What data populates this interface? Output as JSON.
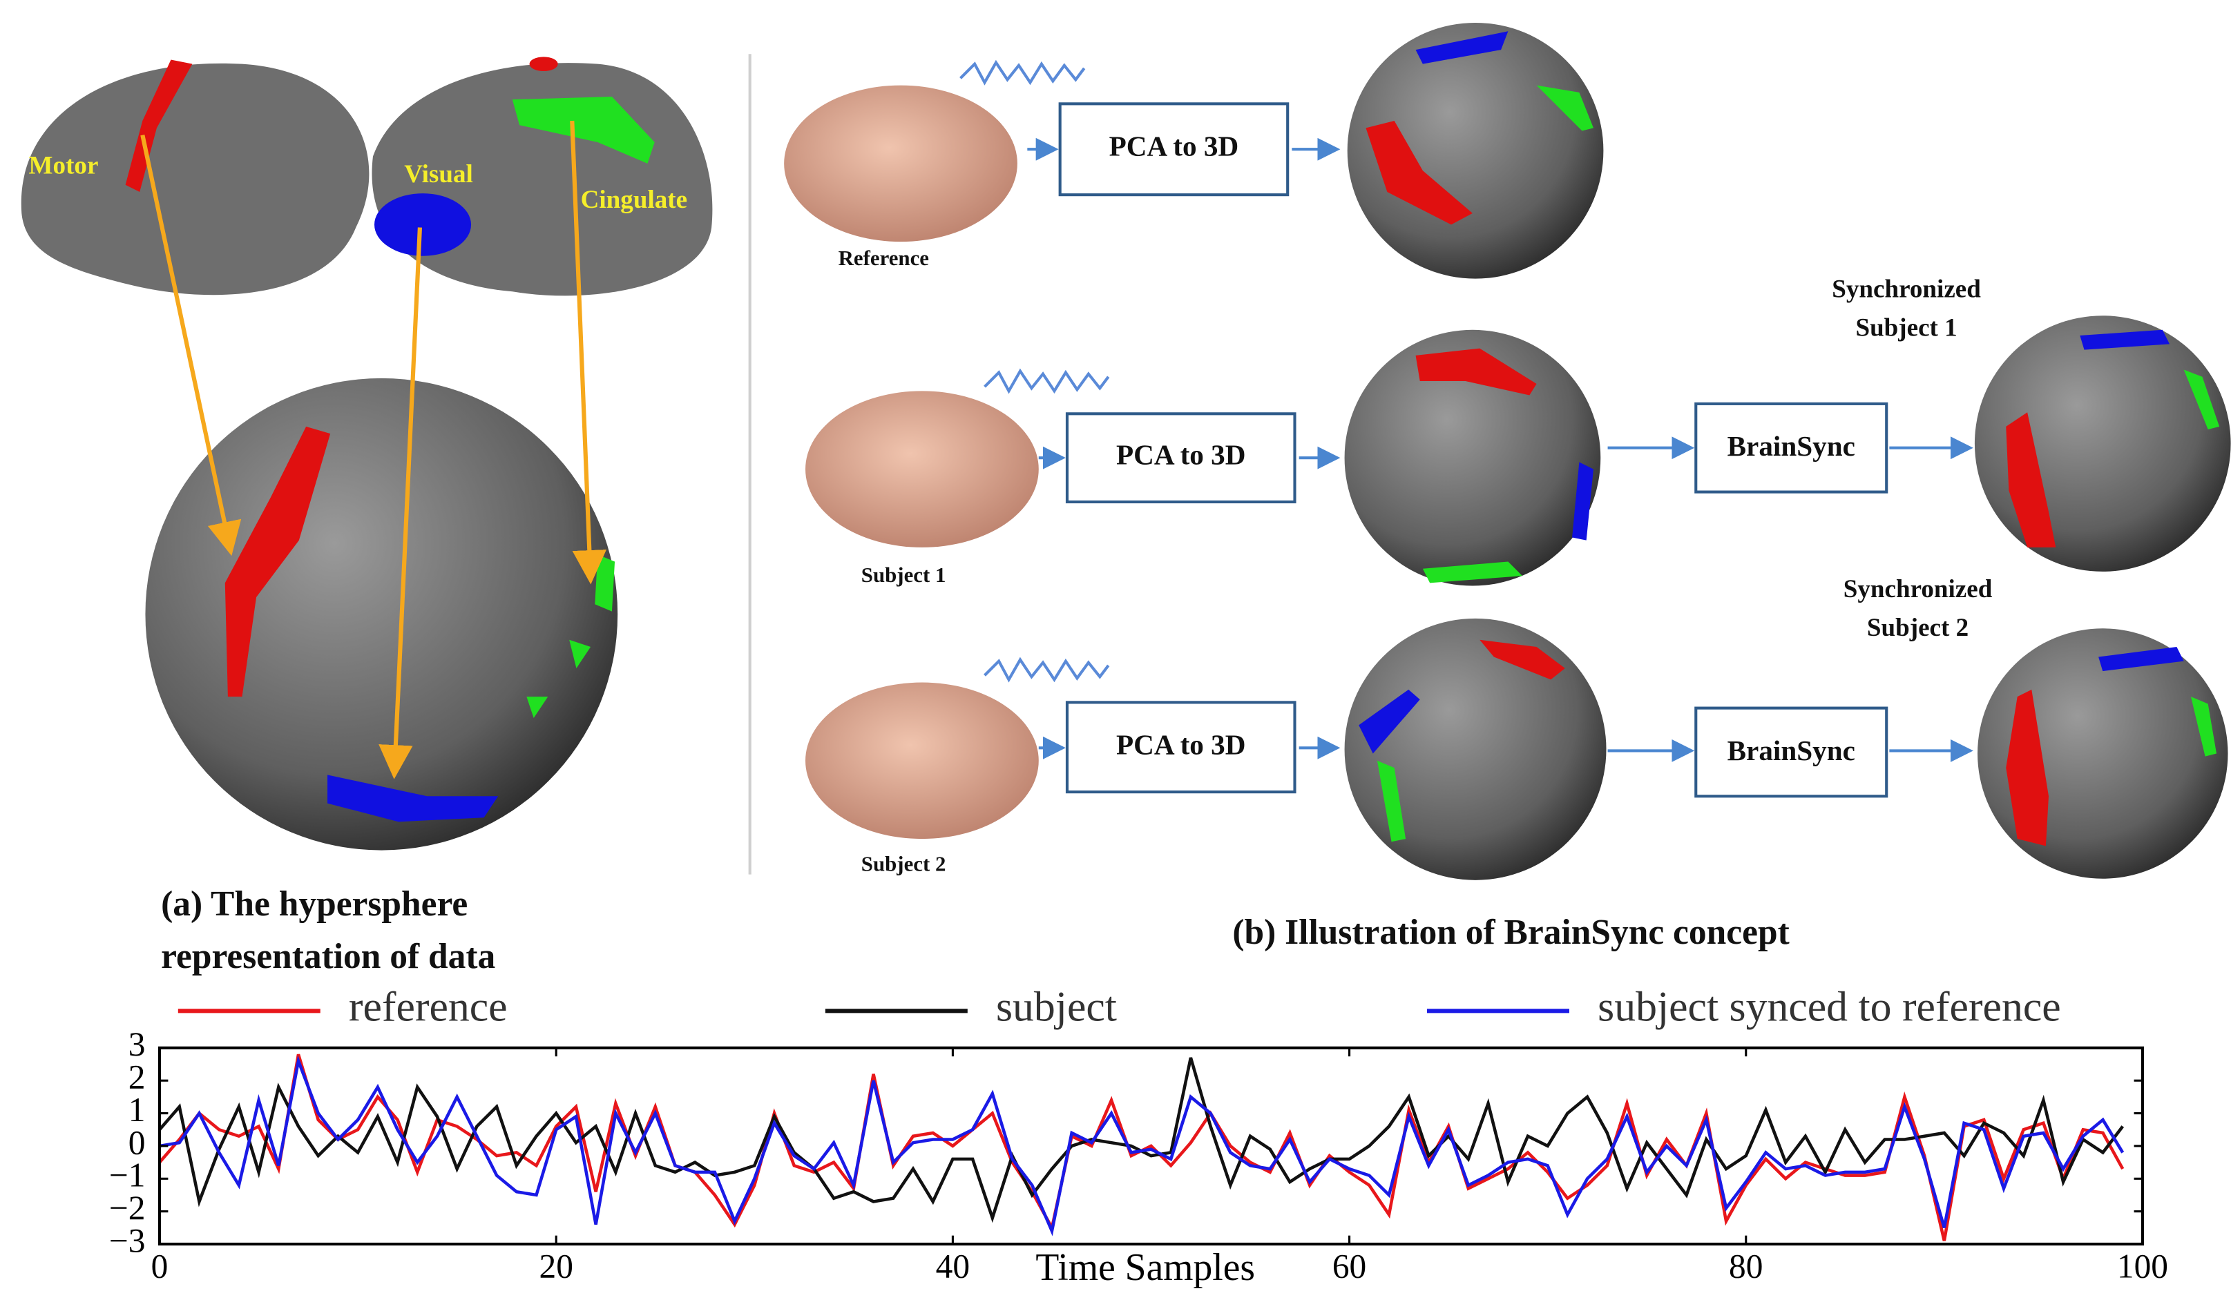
{
  "panel_a": {
    "regions": [
      "Motor",
      "Visual",
      "Cingulate"
    ],
    "caption": [
      "(a) The hypersphere",
      "representation of data"
    ]
  },
  "panel_b": {
    "rows": [
      "Reference",
      "Subject 1",
      "Subject 2"
    ],
    "pca": [
      "PCA to 3D",
      "PCA to 3D",
      "PCA to 3D"
    ],
    "sync": [
      "BrainSync",
      "BrainSync"
    ],
    "synchronized": [
      [
        "Synchronized",
        "Subject 1"
      ],
      [
        "Synchronized",
        "Subject 2"
      ]
    ],
    "caption": "(b) Illustration of BrainSync concept"
  },
  "chart_data": {
    "type": "line",
    "xlabel": "Time Samples",
    "legend": "top",
    "x": [
      0,
      1,
      2,
      3,
      4,
      5,
      6,
      7,
      8,
      9,
      10,
      11,
      12,
      13,
      14,
      15,
      16,
      17,
      18,
      19,
      20,
      21,
      22,
      23,
      24,
      25,
      26,
      27,
      28,
      29,
      30,
      31,
      32,
      33,
      34,
      35,
      36,
      37,
      38,
      39,
      40,
      41,
      42,
      43,
      44,
      45,
      46,
      47,
      48,
      49,
      50,
      51,
      52,
      53,
      54,
      55,
      56,
      57,
      58,
      59,
      60,
      61,
      62,
      63,
      64,
      65,
      66,
      67,
      68,
      69,
      70,
      71,
      72,
      73,
      74,
      75,
      76,
      77,
      78,
      79,
      80,
      81,
      82,
      83,
      84,
      85,
      86,
      87,
      88,
      89,
      90,
      91,
      92,
      93,
      94,
      95,
      96,
      97,
      98,
      99
    ],
    "series": [
      {
        "name": "reference",
        "color": "#e8171b",
        "values": [
          -0.5,
          0.2,
          1.0,
          0.5,
          0.3,
          0.6,
          -0.7,
          2.8,
          0.8,
          0.2,
          0.5,
          1.5,
          0.8,
          -0.8,
          0.8,
          0.6,
          0.2,
          -0.3,
          -0.2,
          -0.6,
          0.6,
          1.2,
          -1.4,
          1.3,
          -0.3,
          1.2,
          -0.6,
          -0.8,
          -1.5,
          -2.4,
          -1.2,
          1.0,
          -0.6,
          -0.8,
          -0.5,
          -1.3,
          2.2,
          -0.6,
          0.3,
          0.4,
          0.0,
          0.5,
          1.0,
          -0.5,
          -1.4,
          -2.5,
          0.3,
          0.0,
          1.4,
          -0.3,
          0.0,
          -0.6,
          0.1,
          1.0,
          0.0,
          -0.5,
          -0.8,
          0.4,
          -1.2,
          -0.3,
          -0.8,
          -1.2,
          -2.1,
          1.1,
          -0.5,
          0.6,
          -1.3,
          -1.0,
          -0.7,
          -0.2,
          -0.8,
          -1.6,
          -1.2,
          -0.6,
          1.3,
          -0.9,
          0.2,
          -0.6,
          1.0,
          -2.3,
          -1.2,
          -0.4,
          -1.0,
          -0.5,
          -0.7,
          -0.9,
          -0.9,
          -0.8,
          1.5,
          -0.3,
          -2.9,
          0.6,
          0.8,
          -1.0,
          0.5,
          0.7,
          -1.0,
          0.5,
          0.4,
          -0.7
        ]
      },
      {
        "name": "subject",
        "color": "#111111",
        "values": [
          0.5,
          1.2,
          -1.7,
          -0.1,
          1.2,
          -0.8,
          1.8,
          0.6,
          -0.3,
          0.3,
          -0.2,
          0.9,
          -0.5,
          1.8,
          0.9,
          -0.7,
          0.6,
          1.2,
          -0.6,
          0.3,
          1.0,
          0.1,
          0.6,
          -0.8,
          1.0,
          -0.6,
          -0.8,
          -0.5,
          -0.9,
          -0.8,
          -0.6,
          0.9,
          -0.2,
          -0.7,
          -1.6,
          -1.4,
          -1.7,
          -1.6,
          -0.7,
          -1.7,
          -0.4,
          -0.4,
          -2.2,
          -0.3,
          -1.5,
          -0.7,
          0.0,
          0.2,
          0.1,
          0.0,
          -0.3,
          -0.2,
          2.7,
          0.6,
          -1.2,
          0.3,
          -0.1,
          -1.1,
          -0.7,
          -0.4,
          -0.4,
          0.0,
          0.6,
          1.5,
          -0.3,
          0.3,
          -0.4,
          1.3,
          -1.1,
          0.3,
          0.0,
          1.0,
          1.5,
          0.4,
          -1.3,
          0.1,
          -0.7,
          -1.5,
          0.2,
          -0.7,
          -0.3,
          1.1,
          -0.5,
          0.3,
          -0.8,
          0.5,
          -0.5,
          0.2,
          0.2,
          0.3,
          0.4,
          -0.3,
          0.7,
          0.4,
          -0.3,
          1.4,
          -1.1,
          0.2,
          -0.2,
          0.6
        ]
      },
      {
        "name": "subject synced to reference",
        "color": "#1a1ae6",
        "values": [
          0.0,
          0.1,
          1.0,
          -0.2,
          -1.2,
          1.4,
          -0.6,
          2.6,
          1.0,
          0.2,
          0.8,
          1.8,
          0.5,
          -0.5,
          0.3,
          1.5,
          0.3,
          -0.9,
          -1.4,
          -1.5,
          0.5,
          0.9,
          -2.4,
          1.0,
          -0.2,
          1.0,
          -0.6,
          -0.8,
          -0.8,
          -2.3,
          -1.0,
          0.7,
          -0.3,
          -0.7,
          0.1,
          -1.2,
          2.0,
          -0.5,
          0.1,
          0.2,
          0.2,
          0.5,
          1.6,
          -0.4,
          -1.2,
          -2.6,
          0.4,
          0.1,
          1.0,
          -0.2,
          -0.1,
          -0.4,
          1.5,
          1.0,
          -0.2,
          -0.6,
          -0.7,
          0.2,
          -1.1,
          -0.4,
          -0.7,
          -0.9,
          -1.5,
          0.9,
          -0.6,
          0.5,
          -1.2,
          -0.9,
          -0.5,
          -0.4,
          -0.6,
          -2.1,
          -1.0,
          -0.4,
          0.9,
          -0.8,
          0.0,
          -0.6,
          0.8,
          -1.9,
          -1.1,
          -0.2,
          -0.7,
          -0.6,
          -0.9,
          -0.8,
          -0.8,
          -0.7,
          1.2,
          -0.4,
          -2.5,
          0.7,
          0.5,
          -1.3,
          0.3,
          0.4,
          -0.7,
          0.3,
          0.8,
          -0.2
        ]
      }
    ],
    "xlim": [
      0,
      100
    ],
    "xticks": [
      0,
      20,
      40,
      60,
      80,
      100
    ],
    "ylim": [
      -3,
      3
    ],
    "yticks": [
      {
        "value": -3,
        "label": "−3"
      },
      {
        "value": -2,
        "label": "−2"
      },
      {
        "value": -1,
        "label": "−1"
      },
      0,
      1,
      2,
      3
    ],
    "grid": false
  }
}
